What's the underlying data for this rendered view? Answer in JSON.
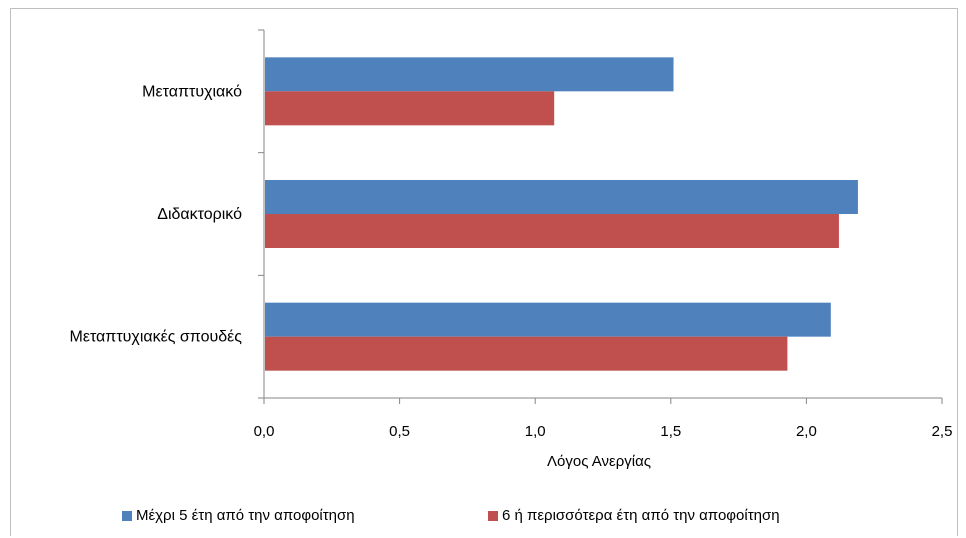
{
  "chart_data": {
    "type": "bar",
    "orientation": "horizontal",
    "categories": [
      "Μεταπτυχιακό",
      "Διδακτορικό",
      "Μεταπτυχιακές σπουδές"
    ],
    "series": [
      {
        "name": "Μέχρι 5 έτη από την αποφοίτηση",
        "values": [
          1.51,
          2.19,
          2.09
        ],
        "color": "#4f81bd"
      },
      {
        "name": "6 ή περισσότερα έτη από την αποφοίτηση",
        "values": [
          1.07,
          2.12,
          1.93
        ],
        "color": "#c0504d"
      }
    ],
    "xlabel": "Λόγος Ανεργίας",
    "xlim": [
      0,
      2.5
    ],
    "xticks": [
      "0,0",
      "0,5",
      "1,0",
      "1,5",
      "2,0",
      "2,5"
    ],
    "xtick_values": [
      0,
      0.5,
      1.0,
      1.5,
      2.0,
      2.5
    ],
    "grid": false,
    "legend_position": "bottom"
  }
}
